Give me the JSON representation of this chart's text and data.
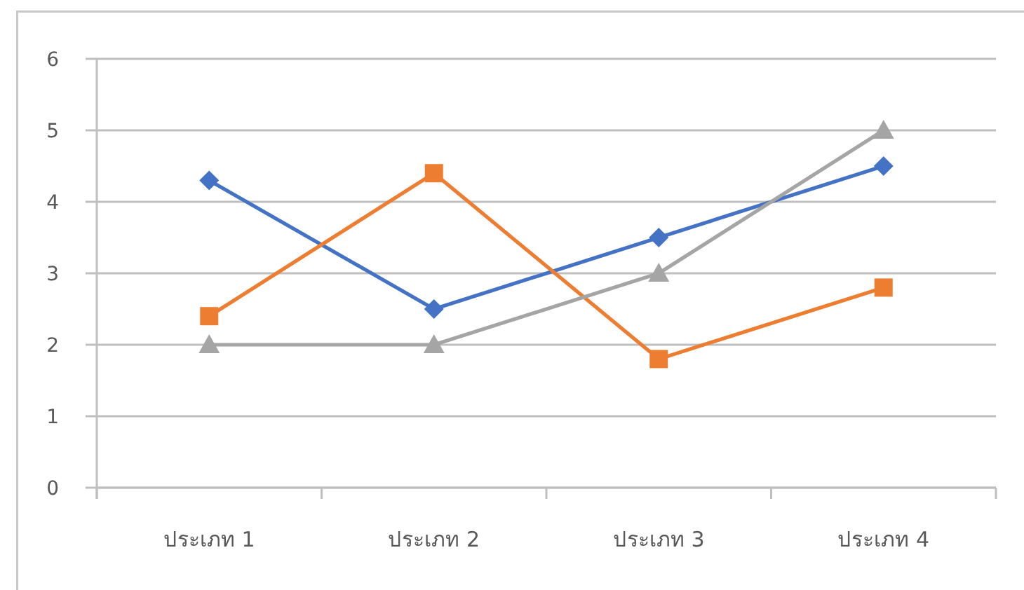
{
  "chart_data": {
    "type": "line",
    "categories": [
      "ประเภท 1",
      "ประเภท 2",
      "ประเภท 3",
      "ประเภท 4"
    ],
    "series": [
      {
        "color": "#4472c4",
        "marker": "diamond",
        "values": [
          4.3,
          2.5,
          3.5,
          4.5
        ]
      },
      {
        "color": "#ed7d31",
        "marker": "square",
        "values": [
          2.4,
          4.4,
          1.8,
          2.8
        ]
      },
      {
        "color": "#a5a5a5",
        "marker": "triangle",
        "values": [
          2,
          2,
          3,
          5
        ]
      }
    ],
    "ylim": [
      0,
      6
    ],
    "yticks": [
      0,
      1,
      2,
      3,
      4,
      5,
      6
    ],
    "grid": "y",
    "line_style": "solid"
  }
}
